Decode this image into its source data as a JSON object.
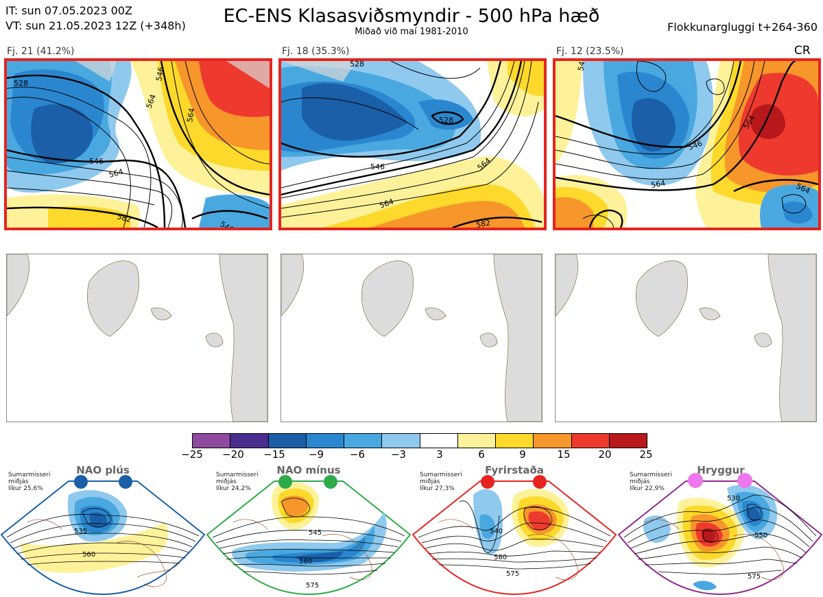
{
  "header": {
    "it_line": "IT: sun 07.05.2023 00Z",
    "vt_line": "VT: sun 21.05.2023 12Z  (+348h)",
    "title": "EC-ENS Klasasviðsmyndir - 500 hPa hæð",
    "subtitle": "Miðað við maí 1981-2010",
    "window": "Flokkunargluggi t+264-360"
  },
  "clusters": [
    {
      "label": "Fj. 21 (41.2%)",
      "extra": ""
    },
    {
      "label": "Fj. 18 (35.3%)",
      "extra": ""
    },
    {
      "label": "Fj. 12 (23.5%)",
      "extra": "CR"
    }
  ],
  "colorbar": {
    "ticks": [
      "−25",
      "−20",
      "−15",
      "−9",
      "−6",
      "−3",
      "3",
      "6",
      "9",
      "15",
      "20",
      "25"
    ],
    "colors": [
      "#8e4a9e",
      "#4a2e8e",
      "#1a5fa8",
      "#2a87cf",
      "#4aa8e0",
      "#8fc9ee",
      "#ffffff",
      "#fdf29a",
      "#fcd92a",
      "#f7962b",
      "#ee3a2e",
      "#b8171b"
    ]
  },
  "regimes": [
    {
      "title": "NAO plús",
      "info": [
        "Sumarmisseri",
        "miðjás",
        "líkur 25,6%"
      ],
      "border": "#1a5fa8",
      "dot": "#1a5fa8",
      "contours": [
        "535",
        "560"
      ]
    },
    {
      "title": "NAO mínus",
      "info": [
        "Sumarmisseri",
        "miðjás",
        "líkur 24,2%"
      ],
      "border": "#2eaa4a",
      "dot": "#2eaa4a",
      "contours": [
        "545",
        "560",
        "575"
      ]
    },
    {
      "title": "Fyrirstaða",
      "info": [
        "Sumarmisseri",
        "miðjás",
        "líkur 27,3%"
      ],
      "border": "#e52420",
      "dot": "#e52420",
      "contours": [
        "540",
        "560",
        "575"
      ]
    },
    {
      "title": "Hryggur",
      "info": [
        "Sumarmisseri",
        "miðjás",
        "líkur 22,9%"
      ],
      "border": "#8e2a8e",
      "dot": "#ee77ee",
      "contours": [
        "530",
        "550",
        "575"
      ]
    }
  ],
  "panel_contours": [
    [
      "528",
      "546",
      "564",
      "582",
      "546",
      "546",
      "564",
      "564"
    ],
    [
      "528",
      "546",
      "564",
      "564",
      "528",
      "582"
    ],
    [
      "546",
      "564",
      "564",
      "546",
      "564"
    ]
  ]
}
